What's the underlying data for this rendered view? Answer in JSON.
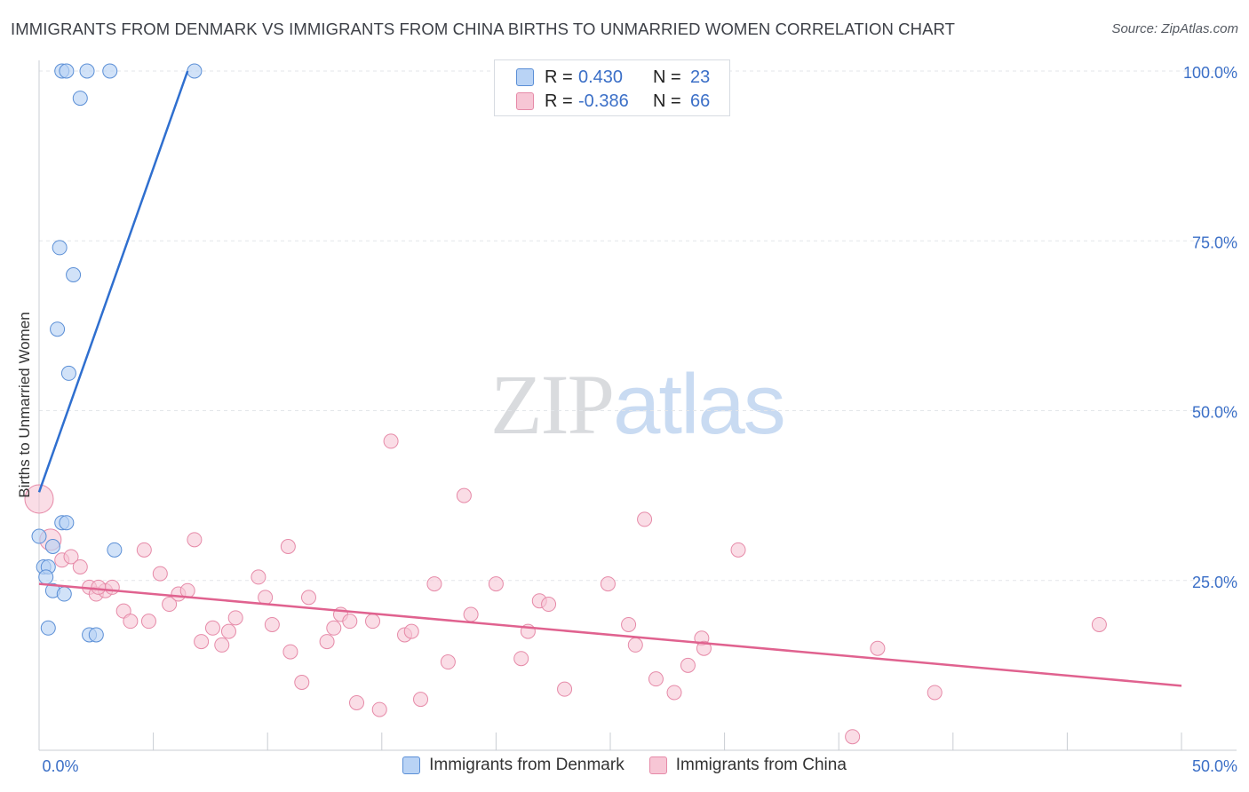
{
  "title": "IMMIGRANTS FROM DENMARK VS IMMIGRANTS FROM CHINA BIRTHS TO UNMARRIED WOMEN CORRELATION CHART",
  "source": "Source: ZipAtlas.com",
  "watermark": {
    "zip": "ZIP",
    "atlas": "atlas"
  },
  "legend": {
    "rows": [
      {
        "r_label": "R =",
        "r_value": "0.430",
        "n_label": "N =",
        "n_value": "23"
      },
      {
        "r_label": "R =",
        "r_value": "-0.386",
        "n_label": "N =",
        "n_value": "66"
      }
    ]
  },
  "colors": {
    "denmark_fill": "#b9d3f5",
    "denmark_stroke": "#5b8fd6",
    "denmark_line": "#2f6fcf",
    "china_fill": "#f7c6d5",
    "china_stroke": "#e68aa8",
    "china_line": "#e0628f",
    "tick_label": "#3b6fc7",
    "grid": "#e3e6ea"
  },
  "chart_data": {
    "type": "scatter",
    "xlabel": "",
    "ylabel": "Births to Unmarried Women",
    "xlim": [
      0,
      50
    ],
    "ylim": [
      0,
      100
    ],
    "x_tick_labels": [
      "0.0%",
      "50.0%"
    ],
    "y_tick_values": [
      25,
      50,
      75,
      100
    ],
    "y_tick_labels": [
      "25.0%",
      "50.0%",
      "75.0%",
      "100.0%"
    ],
    "grid": true,
    "series": [
      {
        "name": "Immigrants from Denmark",
        "points": [
          [
            1.0,
            100
          ],
          [
            1.2,
            100
          ],
          [
            2.1,
            100
          ],
          [
            3.1,
            100
          ],
          [
            6.8,
            100
          ],
          [
            1.8,
            96
          ],
          [
            0.9,
            74
          ],
          [
            1.5,
            70
          ],
          [
            0.8,
            62
          ],
          [
            1.3,
            55.5
          ],
          [
            0.0,
            31.5
          ],
          [
            0.6,
            30
          ],
          [
            1.0,
            33.5
          ],
          [
            1.2,
            33.5
          ],
          [
            3.3,
            29.5
          ],
          [
            0.2,
            27
          ],
          [
            0.4,
            27
          ],
          [
            0.3,
            25.5
          ],
          [
            0.6,
            23.5
          ],
          [
            1.1,
            23
          ],
          [
            0.4,
            18
          ],
          [
            2.2,
            17
          ],
          [
            2.5,
            17
          ]
        ],
        "trend": [
          [
            0.0,
            38
          ],
          [
            6.5,
            100
          ]
        ]
      },
      {
        "name": "Immigrants from China",
        "points": [
          [
            0.0,
            37
          ],
          [
            0.5,
            31
          ],
          [
            1.0,
            28
          ],
          [
            1.4,
            28.5
          ],
          [
            1.8,
            27
          ],
          [
            2.2,
            24
          ],
          [
            2.5,
            23
          ],
          [
            2.9,
            23.5
          ],
          [
            3.2,
            24
          ],
          [
            3.7,
            20.5
          ],
          [
            4.0,
            19
          ],
          [
            4.8,
            19
          ],
          [
            4.6,
            29.5
          ],
          [
            5.3,
            26
          ],
          [
            5.7,
            21.5
          ],
          [
            6.1,
            23
          ],
          [
            6.5,
            23.5
          ],
          [
            6.8,
            31
          ],
          [
            7.1,
            16
          ],
          [
            7.6,
            18
          ],
          [
            8.0,
            15.5
          ],
          [
            8.3,
            17.5
          ],
          [
            8.6,
            19.5
          ],
          [
            9.6,
            25.5
          ],
          [
            9.9,
            22.5
          ],
          [
            10.2,
            18.5
          ],
          [
            10.9,
            30
          ],
          [
            11.0,
            14.5
          ],
          [
            11.5,
            10
          ],
          [
            11.8,
            22.5
          ],
          [
            12.6,
            16
          ],
          [
            12.9,
            18
          ],
          [
            13.2,
            20
          ],
          [
            13.6,
            19
          ],
          [
            13.9,
            7
          ],
          [
            14.6,
            19
          ],
          [
            14.9,
            6
          ],
          [
            15.4,
            45.5
          ],
          [
            16.0,
            17
          ],
          [
            16.3,
            17.5
          ],
          [
            16.7,
            7.5
          ],
          [
            17.3,
            24.5
          ],
          [
            17.9,
            13
          ],
          [
            18.6,
            37.5
          ],
          [
            18.9,
            20
          ],
          [
            20.0,
            24.5
          ],
          [
            21.1,
            13.5
          ],
          [
            21.4,
            17.5
          ],
          [
            21.9,
            22
          ],
          [
            22.3,
            21.5
          ],
          [
            23.0,
            9
          ],
          [
            24.9,
            24.5
          ],
          [
            25.8,
            18.5
          ],
          [
            26.1,
            15.5
          ],
          [
            26.5,
            34
          ],
          [
            27.0,
            10.5
          ],
          [
            27.8,
            8.5
          ],
          [
            28.4,
            12.5
          ],
          [
            29.0,
            16.5
          ],
          [
            29.1,
            15
          ],
          [
            30.6,
            29.5
          ],
          [
            35.6,
            2
          ],
          [
            36.7,
            15
          ],
          [
            39.2,
            8.5
          ],
          [
            46.4,
            18.5
          ],
          [
            2.6,
            24
          ]
        ],
        "trend": [
          [
            0.0,
            24.5
          ],
          [
            50.0,
            9.5
          ]
        ]
      }
    ]
  }
}
